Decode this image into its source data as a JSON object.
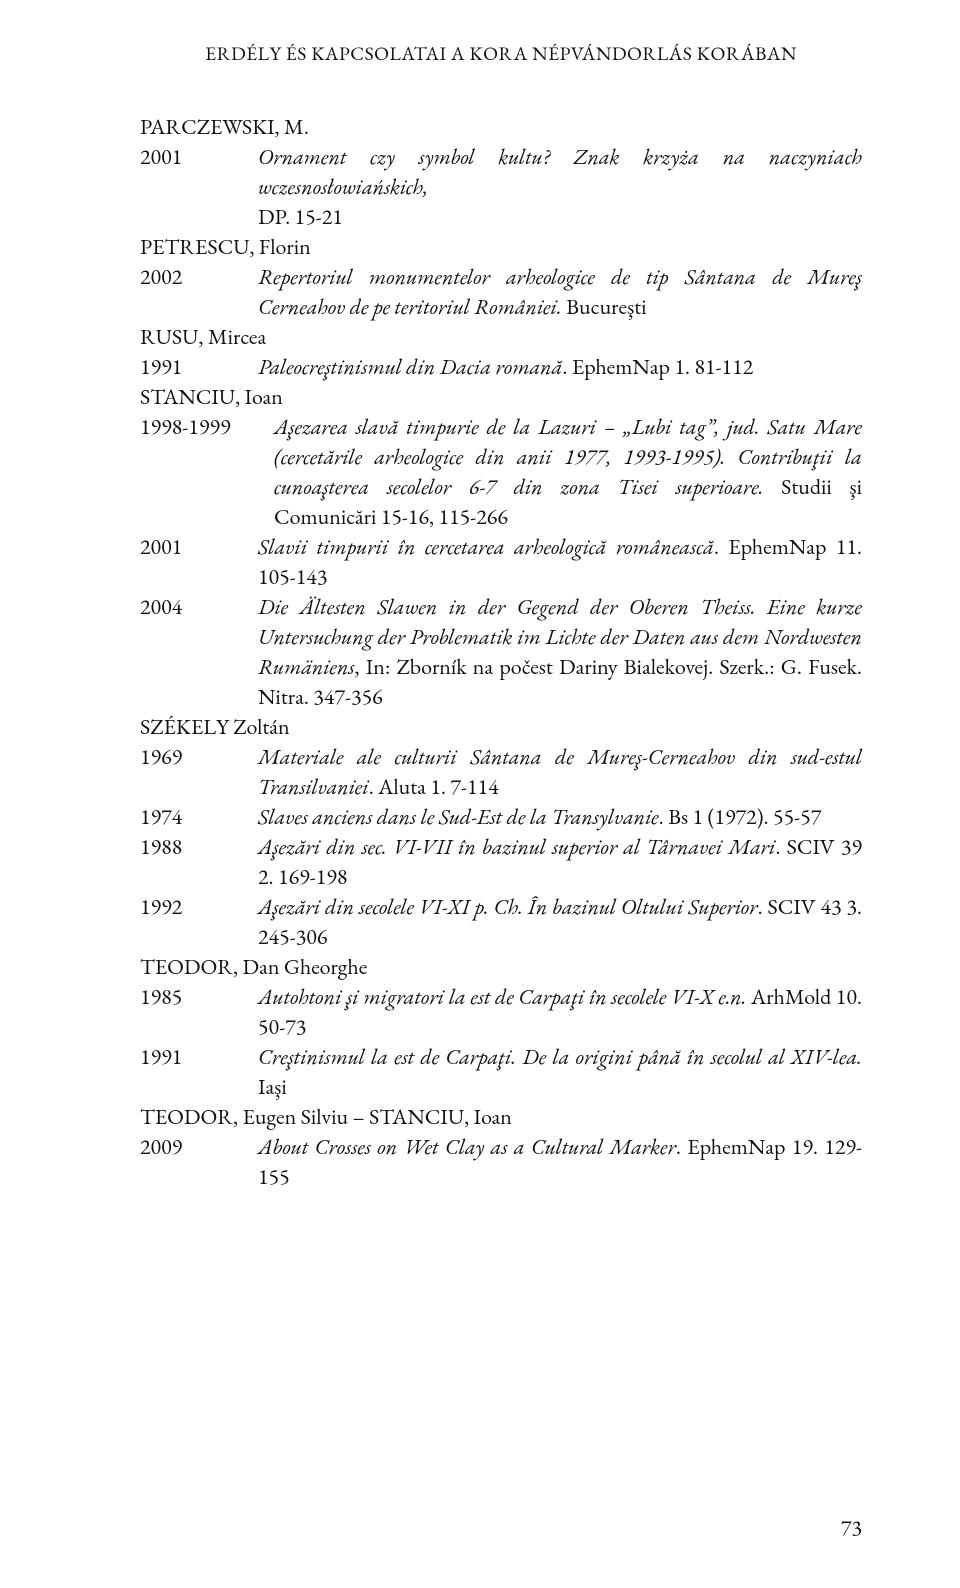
{
  "running_head": "ERDÉLY ÉS KAPCSOLATAI A KORA NÉPVÁNDORLÁS KORÁBAN",
  "page_number": "73",
  "entries": {
    "parczewski": {
      "author": "PARCZEWSKI, M.",
      "y2001": "2001",
      "t2001a": "Ornament czy symbol kultu? Znak krzyża na naczyniach wczesnosłowiańskich,",
      "t2001b": "DP. 15-21"
    },
    "petrescu": {
      "author": "PETRESCU, Florin",
      "y2002": "2002",
      "t2002a": "Repertoriul monumentelor arheologice de tip Sântana de Mureş Cerneahov de pe teritoriul României.",
      "t2002b_plain": " Bucureşti"
    },
    "rusu": {
      "author": "RUSU, Mircea",
      "y1991": "1991",
      "t1991_i": "Paleocreştinismul din Dacia romană",
      "t1991_rest": ". EphemNap 1. 81-112"
    },
    "stanciu": {
      "author": "STANCIU, Ioan",
      "y9899": "1998-1999",
      "t9899_i1": "Aşezarea slavă timpurie de la Lazuri – „Lubi tag”, jud. Satu Mare (cercetările arheologice din anii 1977, 1993-1995). Contribuţii la cunoaşterea secolelor 6-7 din zona Tisei superioare.",
      "t9899_rest": " Studii şi Comunicări 15-16, 115-266",
      "y2001": "2001",
      "t2001_i": "Slavii timpurii în cercetarea arheologică românească",
      "t2001_rest": ". EphemNap 11. 105-143",
      "y2004": "2004",
      "t2004_i": "Die Ältesten Slawen in der Gegend der Oberen Theiss. Eine kurze Untersuchung der Problematik im Lichte der Daten aus dem Nordwesten Rumäniens",
      "t2004_rest": ", In: Zborník na počest Dariny Bialekovej. Szerk.: G. Fusek. Nitra. 347-356"
    },
    "szekely": {
      "author": "SZÉKELY Zoltán",
      "y1969": "1969",
      "t1969_i": "Materiale ale culturii Sântana de Mureş-Cerneahov din sud-estul Transilvaniei",
      "t1969_rest": ". Aluta 1. 7-114",
      "y1974": "1974",
      "t1974_i": "Slaves anciens dans le Sud-Est de la Transylvanie",
      "t1974_rest": ". Bs 1 (1972). 55-57",
      "y1988": "1988",
      "t1988_i": "Aşezări din sec. VI-VII în bazinul superior al Târnavei Mari",
      "t1988_rest": ". SCIV 39 2. 169-198",
      "y1992": "1992",
      "t1992_i": "Aşezări din secolele VI-XI p. Ch. În bazinul Oltului Superior",
      "t1992_rest": ". SCIV 43 3. 245-306"
    },
    "teodor_dg": {
      "author": "TEODOR, Dan Gheorghe",
      "y1985": "1985",
      "t1985_i": "Autohtoni şi migratori la est de Carpaţi în secolele VI-X e.n.",
      "t1985_rest": " ArhMold 10. 50-73",
      "y1991": "1991",
      "t1991_i": "Creştinismul la est de Carpaţi. De la origini până în secolul al XIV-lea.",
      "t1991_rest": " Iaşi"
    },
    "teodor_es": {
      "author": "TEODOR, Eugen Silviu – STANCIU, Ioan",
      "y2009": "2009",
      "t2009_i": "About Crosses on Wet Clay as a Cultural Marker",
      "t2009_rest": ". EphemNap 19. 129-155"
    }
  }
}
